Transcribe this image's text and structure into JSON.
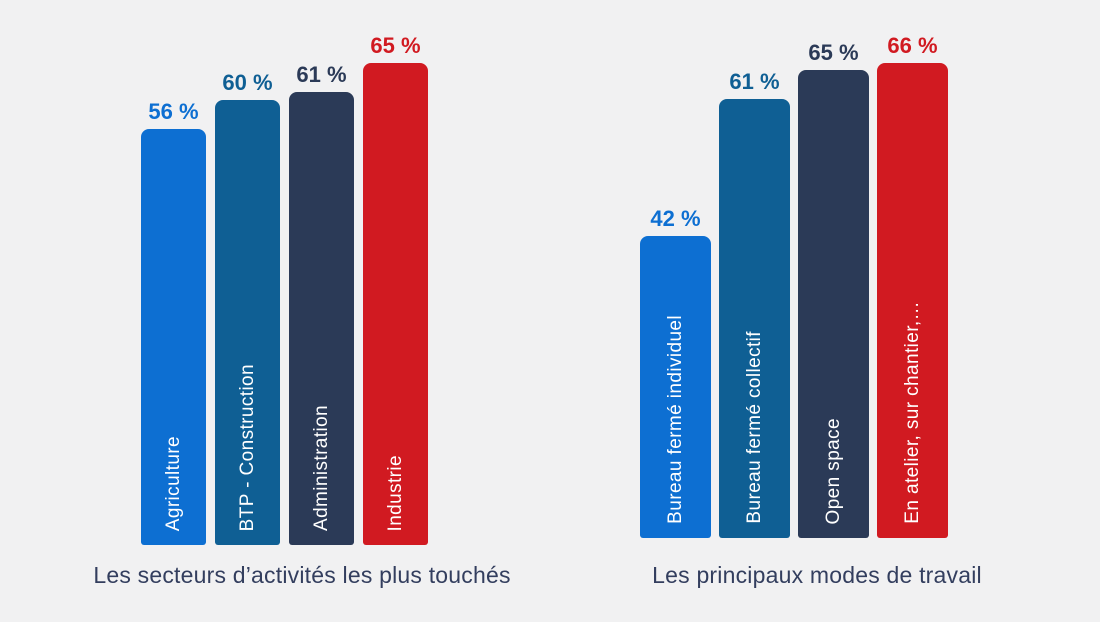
{
  "page": {
    "background_color": "#f1f1f2",
    "caption_text_color": "#333e5e"
  },
  "chart_data": [
    {
      "type": "bar",
      "title": "Les secteurs d’activités les plus touchés",
      "categories": [
        "Agriculture",
        "BTP - Construction",
        "Administration",
        "Industrie"
      ],
      "values": [
        56,
        60,
        61,
        65
      ],
      "value_labels": [
        "56 %",
        "60 %",
        "61 %",
        "65 %"
      ],
      "value_unit": "%",
      "bar_colors": [
        "#0d6fd2",
        "#0f5f94",
        "#2b3a57",
        "#d11a21"
      ],
      "value_label_colors": [
        "#0d6fd2",
        "#0f5f94",
        "#2b3a57",
        "#d11a21"
      ],
      "category_label_color": "#ffffff",
      "label_position": "inside-bottom-rotated",
      "ylim": [
        0,
        70
      ],
      "grid": false,
      "legend": null
    },
    {
      "type": "bar",
      "title": "Les principaux modes de travail",
      "categories": [
        "Bureau fermé individuel",
        "Bureau fermé collectif",
        "Open space",
        "En atelier, sur chantier,…"
      ],
      "values": [
        42,
        61,
        65,
        66
      ],
      "value_labels": [
        "42 %",
        "61 %",
        "65 %",
        "66 %"
      ],
      "value_unit": "%",
      "bar_colors": [
        "#0d6fd2",
        "#0f5f94",
        "#2b3a57",
        "#d11a21"
      ],
      "value_label_colors": [
        "#0d6fd2",
        "#0f5f94",
        "#2b3a57",
        "#d11a21"
      ],
      "category_label_color": "#ffffff",
      "label_position": "inside-bottom-rotated",
      "ylim": [
        0,
        70
      ],
      "grid": false,
      "legend": null
    }
  ]
}
